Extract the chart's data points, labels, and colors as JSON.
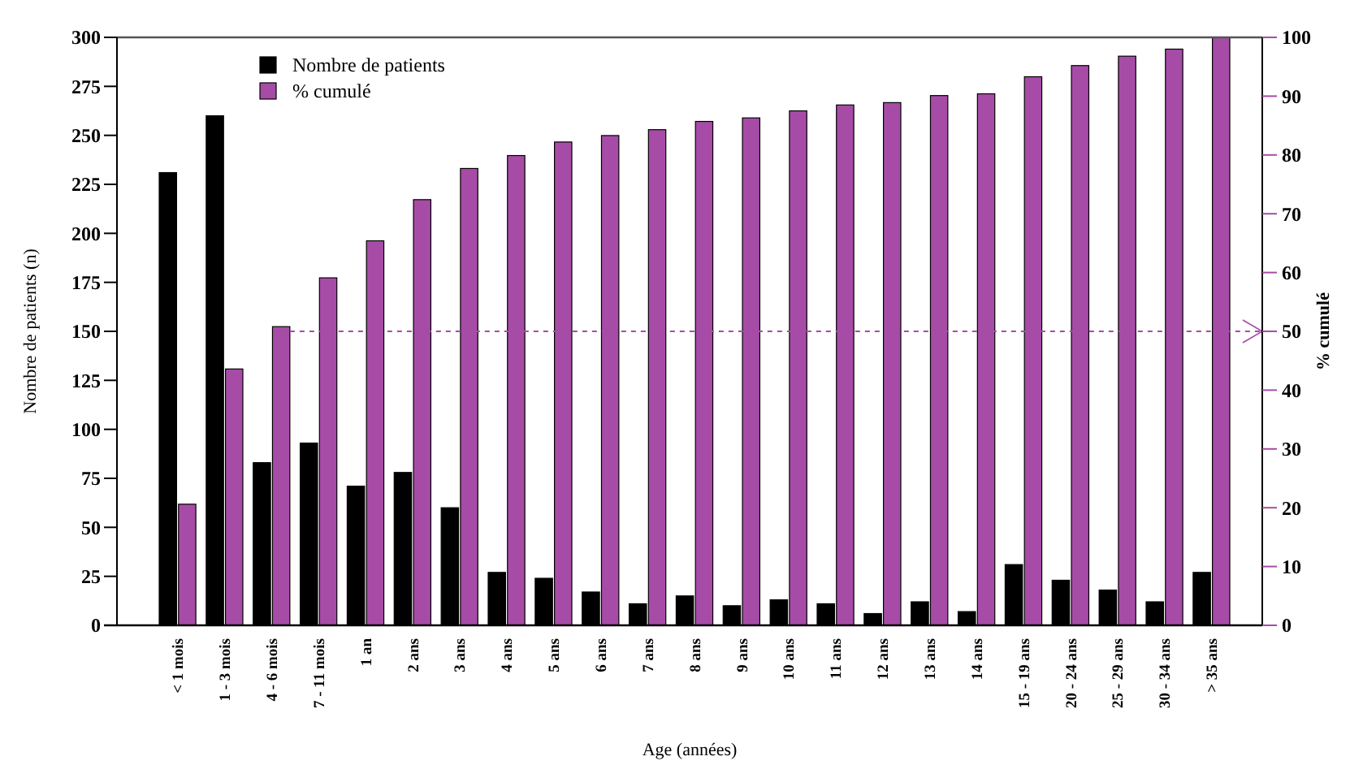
{
  "chart_data": {
    "type": "bar",
    "xlabel": "Age (années)",
    "ylabel": "Nombre de patients (n)",
    "y2label": "% cumulé",
    "categories": [
      "< 1 mois",
      "1 - 3 mois",
      "4 - 6 mois",
      "7 - 11 mois",
      "1 an",
      "2 ans",
      "3 ans",
      "4 ans",
      "5 ans",
      "6 ans",
      "7 ans",
      "8 ans",
      "9 ans",
      "10 ans",
      "11 ans",
      "12 ans",
      "13 ans",
      "14 ans",
      "15 - 19 ans",
      "20 - 24 ans",
      "25 - 29 ans",
      "30 - 34 ans",
      "> 35 ans"
    ],
    "series": [
      {
        "name": "Nombre de patients",
        "color": "#000000",
        "values": [
          231,
          260,
          83,
          93,
          71,
          78,
          60,
          27,
          24,
          17,
          11,
          15,
          10,
          13,
          11,
          6,
          12,
          7,
          31,
          23,
          18,
          12,
          27
        ]
      },
      {
        "name": "% cumulé",
        "color": "#a64ca6",
        "axis": "y2",
        "values": [
          20.6,
          43.6,
          50.8,
          59.1,
          65.4,
          72.4,
          77.7,
          79.9,
          82.2,
          83.3,
          84.3,
          85.7,
          86.3,
          87.5,
          88.5,
          88.9,
          90.1,
          90.4,
          93.3,
          95.2,
          96.8,
          98,
          100
        ]
      }
    ],
    "ylim": [
      0,
      300
    ],
    "yticks": [
      0,
      25,
      50,
      75,
      100,
      125,
      150,
      175,
      200,
      225,
      250,
      275,
      300
    ],
    "y2lim": [
      0,
      100
    ],
    "y2ticks": [
      0,
      10,
      20,
      30,
      40,
      50,
      60,
      70,
      80,
      90,
      100
    ],
    "ref_lines": [
      {
        "axis": "y2",
        "value": 50,
        "color": "#a64ca6",
        "line_style": "dashed"
      }
    ],
    "legend": "top left",
    "grid": false
  }
}
